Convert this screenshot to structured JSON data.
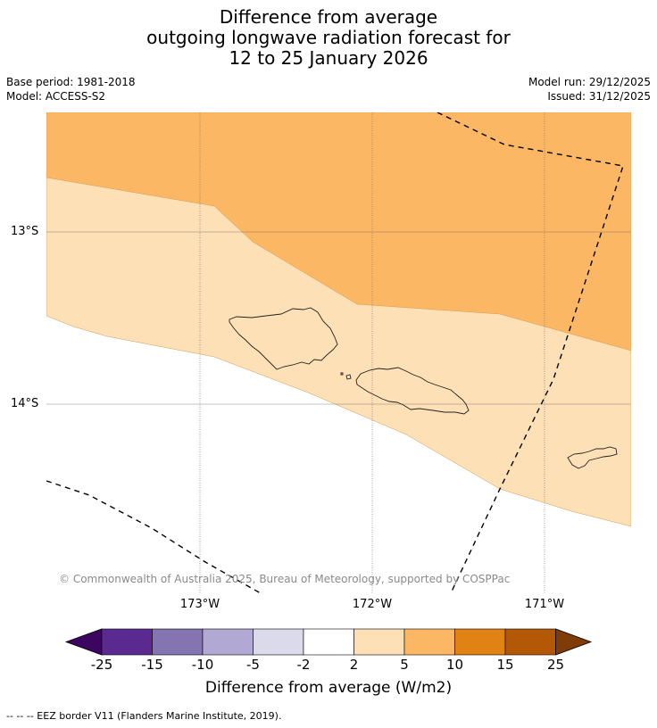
{
  "title": {
    "line1": "Difference from average",
    "line2": "outgoing longwave radiation forecast for",
    "line3": "12 to 25 January 2026"
  },
  "meta": {
    "base_period": "Base period: 1981-2018",
    "model": "Model: ACCESS-S2",
    "model_run": "Model run: 29/12/2025",
    "issued": "Issued: 31/12/2025"
  },
  "map": {
    "lat_labels": [
      "13°S",
      "14°S"
    ],
    "lon_labels": [
      "173°W",
      "172°W",
      "171°W"
    ],
    "copyright": "© Commonwealth of Australia 2025, Bureau of Meteorology, supported by COSPPac",
    "colors": {
      "band_2_5": "#fde0b5",
      "band_5_10": "#fbb763",
      "outline": "#222222",
      "gridline": "#6a6a6a"
    }
  },
  "colorbar": {
    "ticks": [
      "-25",
      "-15",
      "-10",
      "-5",
      "-2",
      "2",
      "5",
      "10",
      "15",
      "25"
    ],
    "colors": [
      "#3b0560",
      "#5b2a90",
      "#8474b1",
      "#b1a9d3",
      "#dadaeb",
      "#ffffff",
      "#fde0b5",
      "#fbb763",
      "#e08214",
      "#b35806",
      "#7f3b08"
    ],
    "title": "Difference from average (W/m2)"
  },
  "legend": {
    "eez_label": "--  --  -- EEZ border V11 (Flanders Marine Institute, 2019)."
  }
}
